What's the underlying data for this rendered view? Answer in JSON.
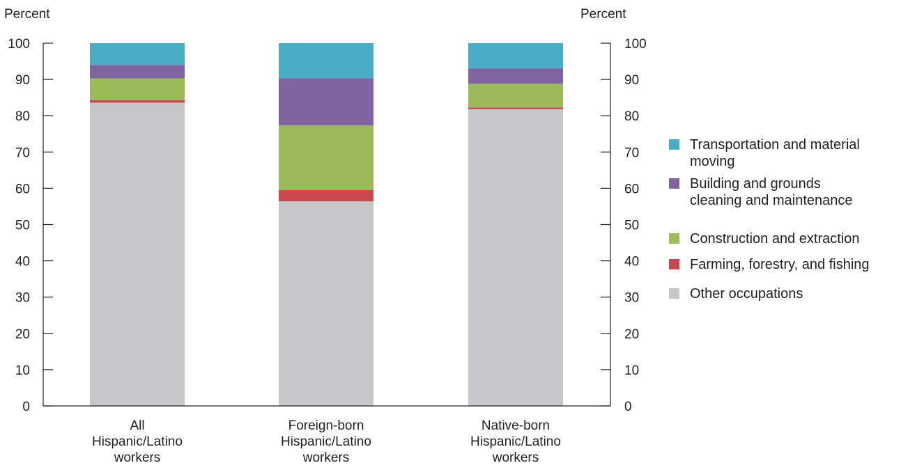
{
  "chart_data": {
    "type": "bar",
    "stacked": true,
    "title": "",
    "ylabel_left": "Percent",
    "ylabel_right": "Percent",
    "ylim": [
      0,
      100
    ],
    "yticks": [
      "0",
      "10",
      "20",
      "30",
      "40",
      "50",
      "60",
      "70",
      "80",
      "90",
      "100"
    ],
    "grid": false,
    "legend_position": "right",
    "categories": [
      [
        "All",
        "Hispanic/Latino",
        "workers"
      ],
      [
        "Foreign-born",
        "Hispanic/Latino",
        "workers"
      ],
      [
        "Native-born",
        "Hispanic/Latino",
        "workers"
      ]
    ],
    "series": [
      {
        "name": "Other occupations",
        "color": "#c6c7c9",
        "values": [
          83.6,
          56.4,
          81.8
        ]
      },
      {
        "name": "Farming, forestry, and fishing",
        "color": "#c9494f",
        "values": [
          0.7,
          3.1,
          0.5
        ]
      },
      {
        "name": "Construction and extraction",
        "color": "#9bbb59",
        "values": [
          6.0,
          17.8,
          6.5
        ]
      },
      {
        "name": "Building and grounds cleaning and maintenance",
        "color": "#8064a2",
        "values": [
          3.7,
          13.0,
          4.2
        ]
      },
      {
        "name": "Transportation and material moving",
        "color": "#4bacc6",
        "values": [
          6.0,
          9.7,
          7.0
        ]
      }
    ],
    "legend": [
      {
        "lines": [
          "Transportation and material",
          "moving"
        ],
        "series_index": 4
      },
      {
        "lines": [
          "Building and grounds",
          "cleaning and maintenance"
        ],
        "series_index": 3
      },
      {
        "lines": [
          "Construction and extraction"
        ],
        "series_index": 2
      },
      {
        "lines": [
          "Farming, forestry, and fishing"
        ],
        "series_index": 1
      },
      {
        "lines": [
          "Other occupations"
        ],
        "series_index": 0
      }
    ]
  }
}
